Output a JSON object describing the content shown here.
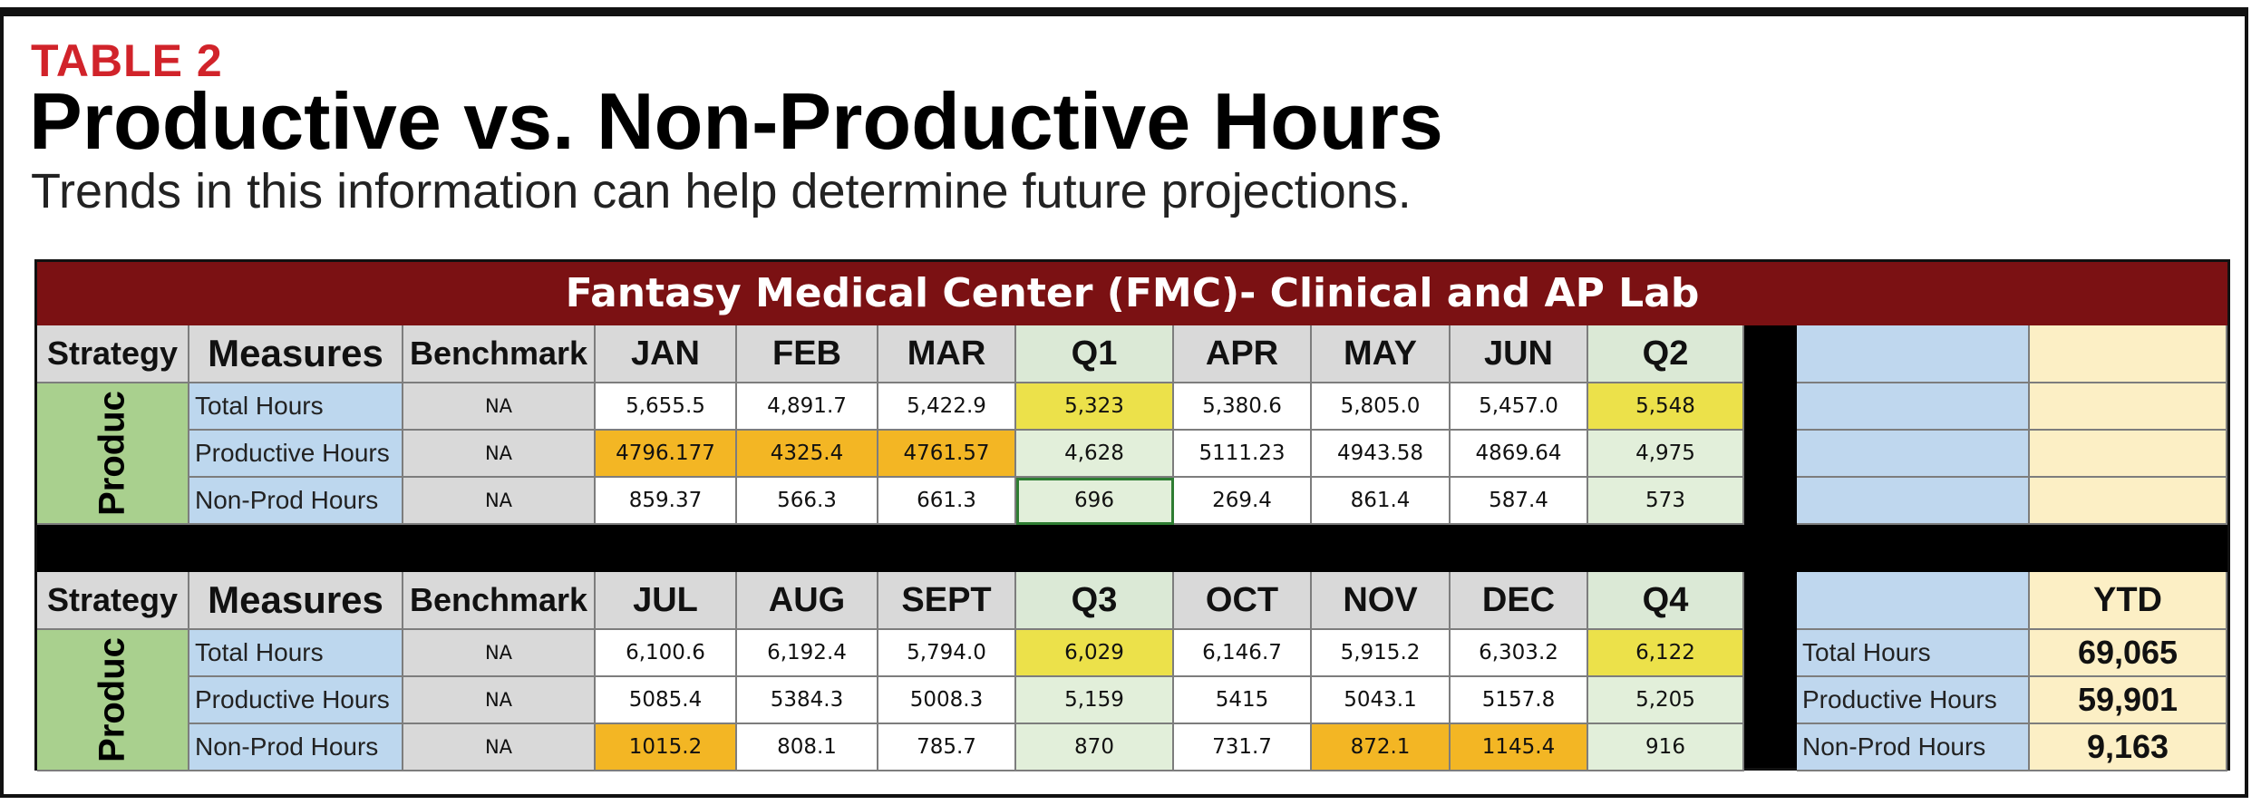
{
  "header": {
    "eyebrow": "TABLE 2",
    "title": "Productive vs. Non-Productive Hours",
    "subtitle": "Trends in this information can help determine future projections."
  },
  "sheet": {
    "banner": "Fantasy Medical Center (FMC)- Clinical and AP Lab",
    "colors": {
      "banner": "#7b1113",
      "header_gray": "#d9d9d9",
      "measure_blue": "#bdd7ee",
      "strategy_green": "#a9d08e",
      "quarter_green": "#e2efda",
      "highlight_orange": "#f3b624",
      "highlight_yellow": "#eee24a",
      "ytd_cream": "#fcefc5"
    },
    "top": {
      "headers": [
        "Strategy",
        "Measures",
        "Benchmark",
        "JAN",
        "FEB",
        "MAR",
        "Q1",
        "APR",
        "MAY",
        "JUN",
        "Q2"
      ],
      "strategy": "Produc",
      "rows": [
        {
          "measure": "Total Hours",
          "benchmark": "NA",
          "values": [
            "5,655.5",
            "4,891.7",
            "5,422.9",
            "5,323",
            "5,380.6",
            "5,805.0",
            "5,457.0",
            "5,548"
          ]
        },
        {
          "measure": "Productive Hours",
          "benchmark": "NA",
          "values": [
            "4796.177",
            "4325.4",
            "4761.57",
            "4,628",
            "5111.23",
            "4943.58",
            "4869.64",
            "4,975"
          ]
        },
        {
          "measure": "Non-Prod Hours",
          "benchmark": "NA",
          "values": [
            "859.37",
            "566.3",
            "661.3",
            "696",
            "269.4",
            "861.4",
            "587.4",
            "573"
          ]
        }
      ]
    },
    "bottom": {
      "headers": [
        "Strategy",
        "Measures",
        "Benchmark",
        "JUL",
        "AUG",
        "SEPT",
        "Q3",
        "OCT",
        "NOV",
        "DEC",
        "Q4"
      ],
      "strategy": "Produc",
      "rows": [
        {
          "measure": "Total Hours",
          "benchmark": "NA",
          "values": [
            "6,100.6",
            "6,192.4",
            "5,794.0",
            "6,029",
            "6,146.7",
            "5,915.2",
            "6,303.2",
            "6,122"
          ]
        },
        {
          "measure": "Productive Hours",
          "benchmark": "NA",
          "values": [
            "5085.4",
            "5384.3",
            "5008.3",
            "5,159",
            "5415",
            "5043.1",
            "5157.8",
            "5,205"
          ]
        },
        {
          "measure": "Non-Prod Hours",
          "benchmark": "NA",
          "values": [
            "1015.2",
            "808.1",
            "785.7",
            "870",
            "731.7",
            "872.1",
            "1145.4",
            "916"
          ]
        }
      ]
    },
    "ytd": {
      "header": "YTD",
      "rows": [
        {
          "label": "Total Hours",
          "value": "69,065"
        },
        {
          "label": "Productive Hours",
          "value": "59,901"
        },
        {
          "label": "Non-Prod Hours",
          "value": "9,163"
        }
      ]
    }
  }
}
